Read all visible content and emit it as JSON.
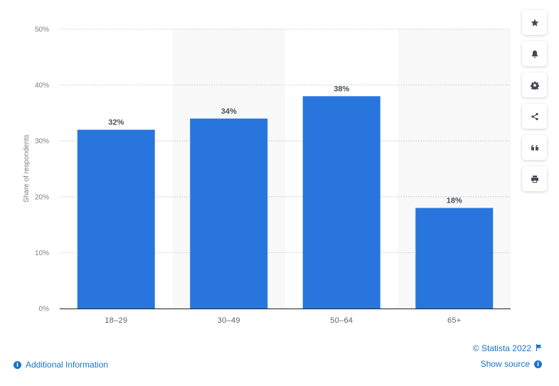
{
  "chart_data": {
    "type": "bar",
    "categories": [
      "18-29",
      "30-49",
      "50-64",
      "65+"
    ],
    "category_labels": [
      "18–29",
      "30–49",
      "50–64",
      "65+"
    ],
    "values": [
      32,
      34,
      38,
      18
    ],
    "value_labels": [
      "32%",
      "34%",
      "38%",
      "18%"
    ],
    "ylabel": "Share of respondents",
    "ylim": [
      0,
      50
    ],
    "yticks": [
      0,
      10,
      20,
      30,
      40,
      50
    ],
    "ytick_labels": [
      "0%",
      "10%",
      "20%",
      "30%",
      "40%",
      "50%"
    ],
    "grid": true,
    "bar_color": "#2876dd",
    "alternate_band_color": "#f8f8f9"
  },
  "toolbar": {
    "buttons": [
      {
        "name": "favorite",
        "icon": "star-icon"
      },
      {
        "name": "notification",
        "icon": "bell-icon"
      },
      {
        "name": "settings",
        "icon": "gear-icon"
      },
      {
        "name": "share",
        "icon": "share-icon"
      },
      {
        "name": "cite",
        "icon": "quote-icon"
      },
      {
        "name": "print",
        "icon": "printer-icon"
      }
    ]
  },
  "footer": {
    "copyright": "© Statista 2022",
    "show_source": "Show source",
    "additional_info": "Additional Information",
    "link_color": "#1a73c8"
  }
}
